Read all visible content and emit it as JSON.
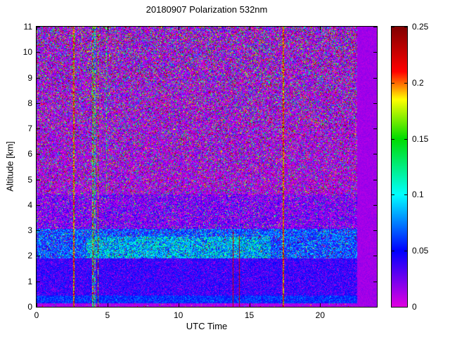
{
  "chart_data": {
    "type": "heatmap",
    "title": "20180907 Polarization 532nm",
    "xlabel": "UTC Time",
    "ylabel": "Altitude [km]",
    "xlim": [
      0,
      24
    ],
    "ylim": [
      0,
      11
    ],
    "x_ticks": [
      "0",
      "5",
      "10",
      "15",
      "20"
    ],
    "y_ticks": [
      "0",
      "1",
      "2",
      "3",
      "4",
      "5",
      "6",
      "7",
      "8",
      "9",
      "10",
      "11"
    ],
    "colorbar": {
      "min": 0,
      "max": 0.25,
      "ticks": [
        "0",
        "0.05",
        "0.1",
        "0.15",
        "0.2",
        "0.25"
      ],
      "colormap": [
        {
          "v": 0.0,
          "color": "#e000e0"
        },
        {
          "v": 0.05,
          "color": "#0000ff"
        },
        {
          "v": 0.1,
          "color": "#00ffff"
        },
        {
          "v": 0.15,
          "color": "#00dc00"
        },
        {
          "v": 0.185,
          "color": "#ffff00"
        },
        {
          "v": 0.21,
          "color": "#ff0000"
        },
        {
          "v": 0.25,
          "color": "#800000"
        }
      ]
    },
    "field_model": {
      "seed": 20180907,
      "no_data_after": 22.6,
      "no_data_value": 0.014,
      "no_data_noise": 0.012,
      "layers": [
        {
          "alt": [
            0,
            0.15
          ],
          "base": 0.012,
          "noise": 0.008,
          "speckle_p": [
            0.03,
            0.03
          ],
          "speckle_range": [
            0,
            0.25
          ]
        },
        {
          "alt": [
            0.15,
            0.45
          ],
          "base": 0.058,
          "noise": 0.018,
          "speckle_p": [
            0.05,
            0.05
          ],
          "speckle_range": [
            0,
            0.1
          ]
        },
        {
          "alt": [
            0.45,
            1.9
          ],
          "base": 0.04,
          "noise": 0.022,
          "speckle_p": [
            0.12,
            0.12
          ],
          "speckle_range": [
            0,
            0.03
          ]
        },
        {
          "alt": [
            1.9,
            3.05
          ],
          "base": 0.062,
          "noise": 0.038,
          "speckle_p": [
            0.1,
            0.1
          ],
          "speckle_range": [
            0,
            0.25
          ]
        },
        {
          "alt": [
            3.05,
            4.4
          ],
          "base": 0.02,
          "noise": 0.028,
          "speckle_p": [
            0.15,
            0.15
          ],
          "speckle_range": [
            0,
            0.2
          ]
        },
        {
          "alt": [
            4.4,
            11.01
          ],
          "base": 0.01,
          "noise": 0.018,
          "speckle_p": [
            0.3,
            0.48
          ],
          "speckle_range": [
            0,
            0.26
          ]
        }
      ],
      "patches": [
        {
          "t": [
            3.5,
            16.5
          ],
          "alt": [
            1.9,
            2.75
          ],
          "boost": 0.05
        }
      ],
      "stripes": [
        {
          "t": 2.62,
          "width": 0.1,
          "value": 0.2,
          "jitter": 0.05
        },
        {
          "t": 3.95,
          "width": 0.09,
          "value": 0.17,
          "jitter": 0.1
        },
        {
          "t": 4.13,
          "width": 0.09,
          "value": 0.11,
          "jitter": 0.1
        },
        {
          "t": 4.33,
          "width": 0.07,
          "value": 0.19,
          "jitter": 0.08
        },
        {
          "t": 4.95,
          "width": 0.05,
          "value": 0.12,
          "jitter": 0.1,
          "alt": [
            4.5,
            11
          ]
        },
        {
          "t": 13.85,
          "width": 0.06,
          "value": 0.23,
          "jitter": 0.02,
          "alt": [
            0,
            3.0
          ]
        },
        {
          "t": 14.3,
          "width": 0.05,
          "value": 0.23,
          "jitter": 0.02,
          "alt": [
            0,
            2.8
          ]
        },
        {
          "t": 17.42,
          "width": 0.11,
          "value": 0.21,
          "jitter": 0.05
        }
      ]
    }
  }
}
